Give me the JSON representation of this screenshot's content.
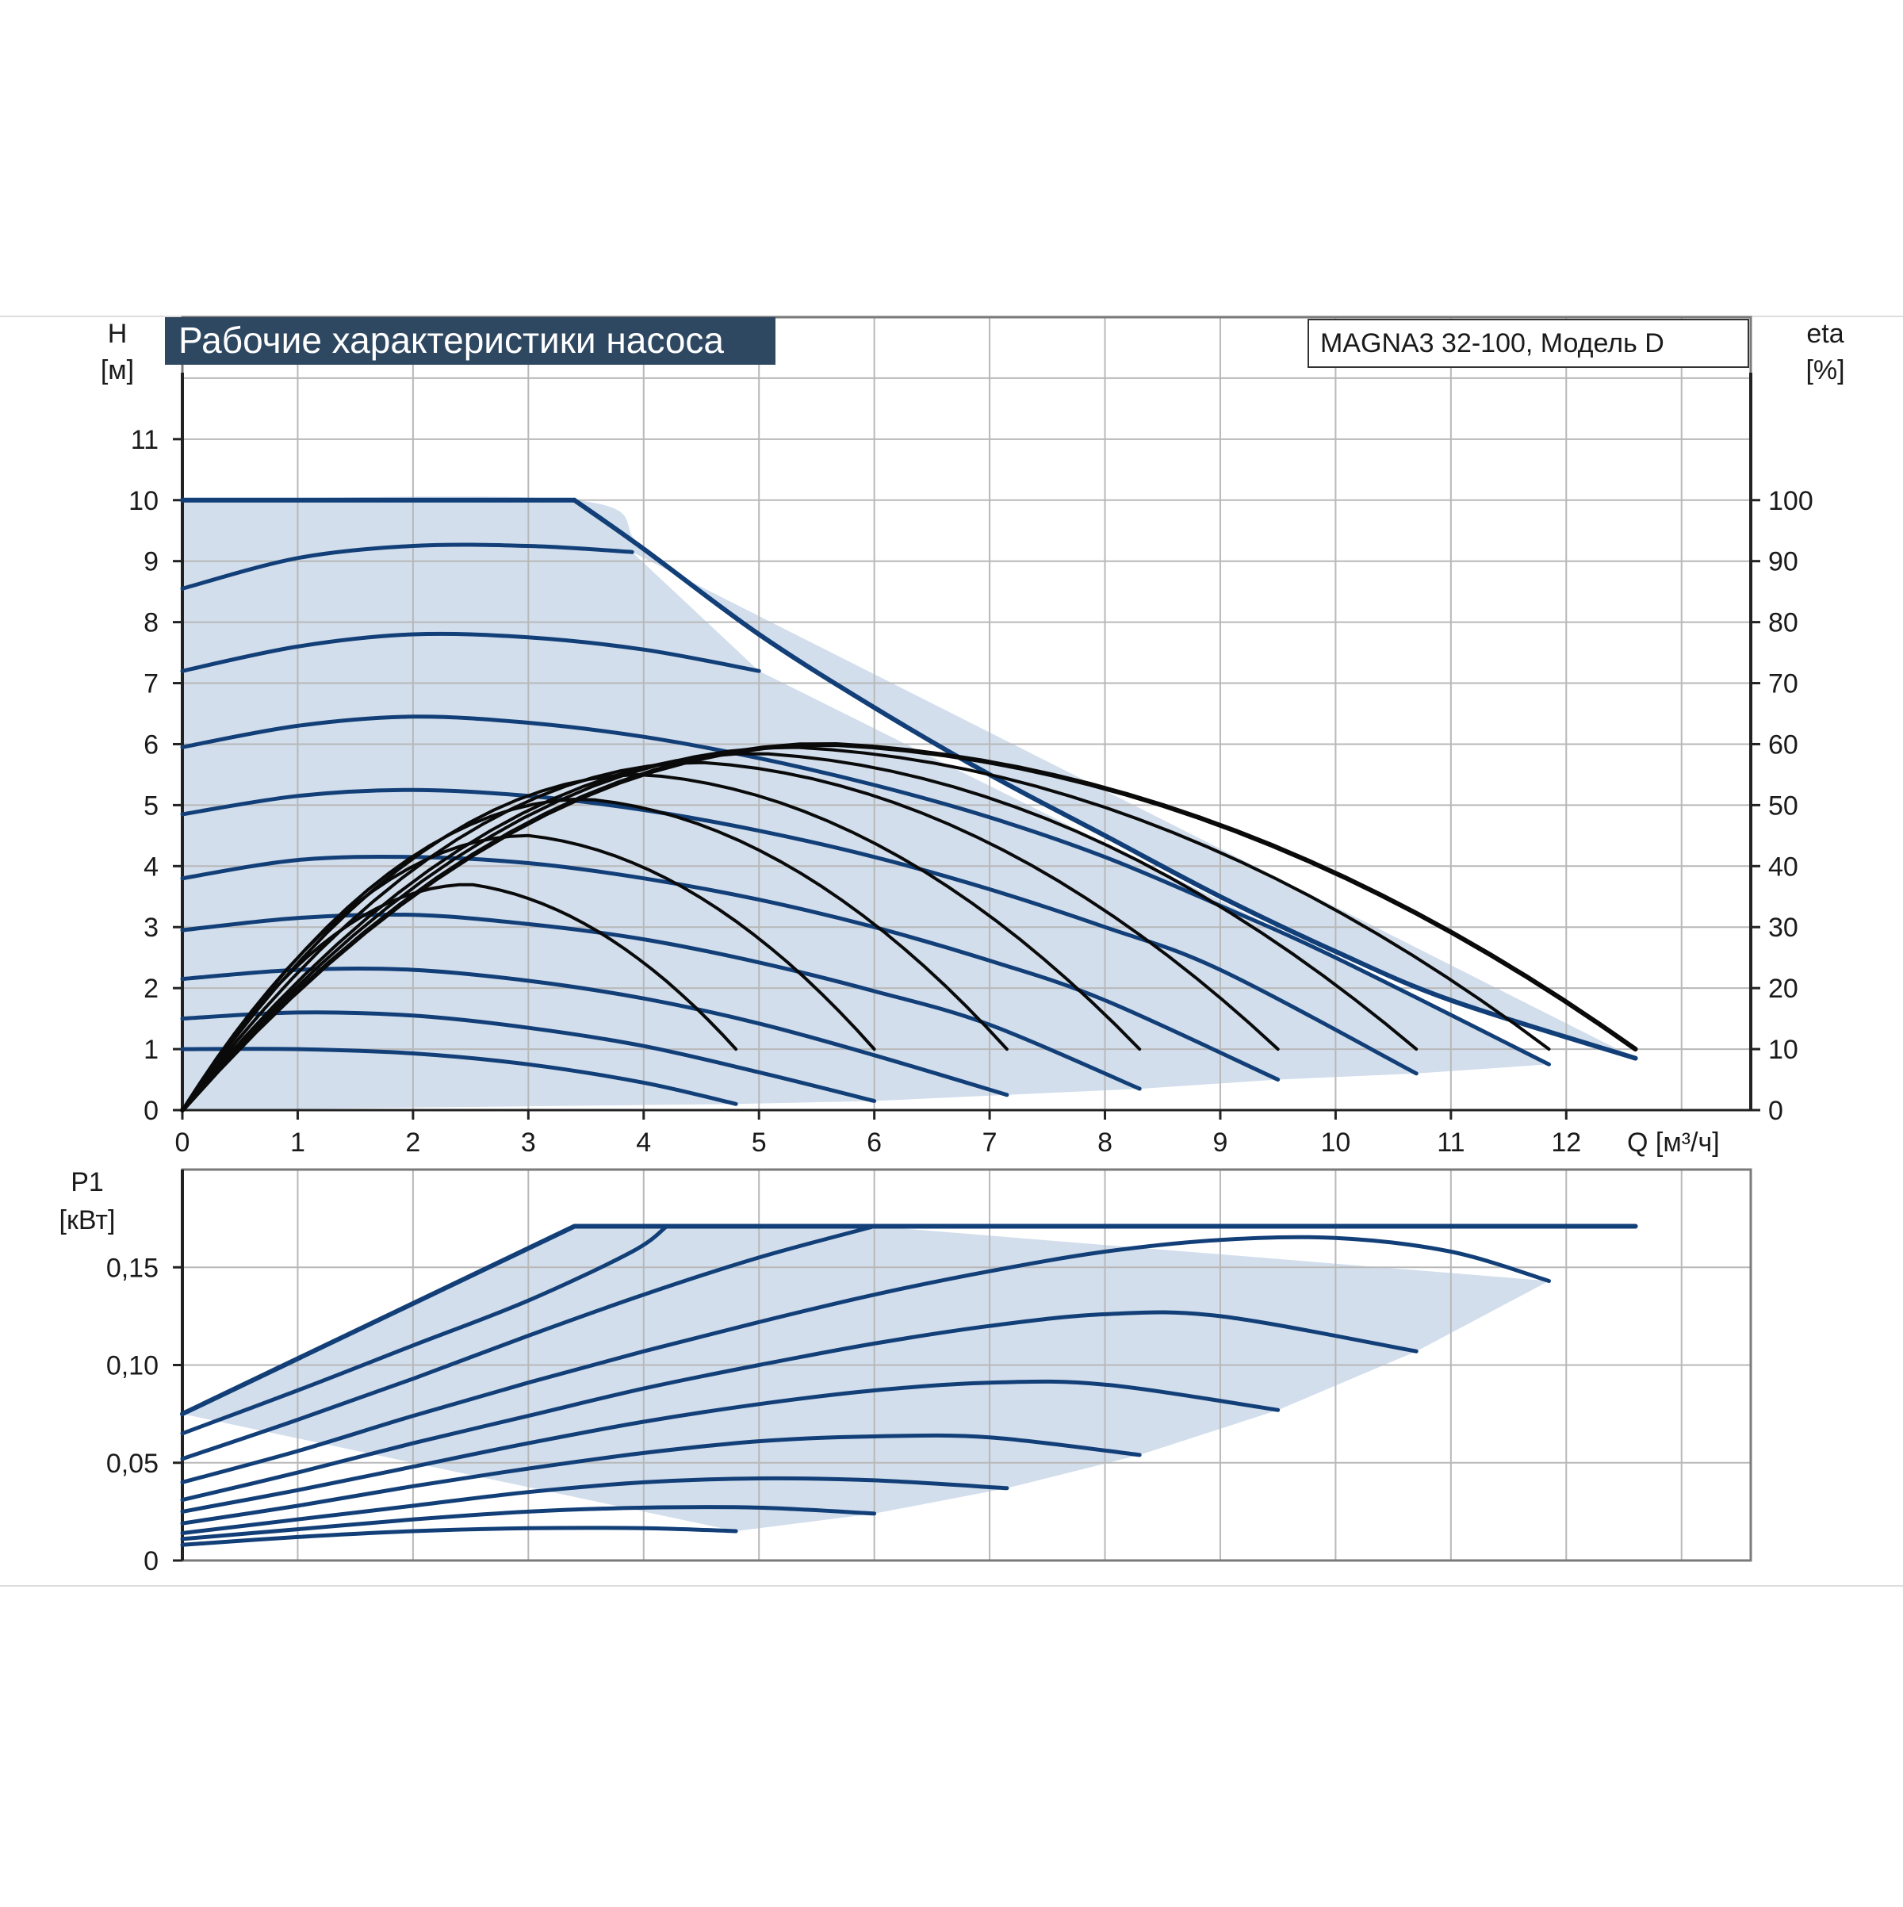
{
  "chart_data": [
    {
      "type": "line",
      "title": "Рабочие характеристики насоса",
      "model": "MAGNA3 32-100, Модель D",
      "xlabel": "Q [м³/ч]",
      "ylabel_symbol": "H",
      "ylabel_unit": "[м]",
      "y2label_symbol": "eta",
      "y2label_unit": "[%]",
      "xlim": [
        0,
        13.6
      ],
      "ylim": [
        0,
        13
      ],
      "y2lim": [
        0,
        130
      ],
      "xticks": [
        "0",
        "1",
        "2",
        "3",
        "4",
        "5",
        "6",
        "7",
        "8",
        "9",
        "10",
        "11",
        "12"
      ],
      "yticks": [
        "0",
        "1",
        "2",
        "3",
        "4",
        "5",
        "6",
        "7",
        "8",
        "9",
        "10",
        "11"
      ],
      "y2ticks": [
        "0",
        "10",
        "20",
        "30",
        "40",
        "50",
        "60",
        "70",
        "80",
        "90",
        "100"
      ],
      "grid": true,
      "shaded_region": "operating range",
      "max_curve_H": {
        "x": [
          0,
          3.4,
          4.0,
          5.0,
          6.0,
          7.0,
          8.0,
          9.0,
          10.0,
          11.0,
          12.6
        ],
        "y": [
          10,
          10,
          9.2,
          7.8,
          6.6,
          5.5,
          4.5,
          3.5,
          2.6,
          1.8,
          0.85
        ]
      },
      "series": [
        {
          "values": [
            [
              0,
              1.0
            ],
            [
              1,
              1.0
            ],
            [
              2,
              0.93
            ],
            [
              3,
              0.75
            ],
            [
              4,
              0.45
            ],
            [
              4.8,
              0.1
            ]
          ]
        },
        {
          "values": [
            [
              0,
              1.5
            ],
            [
              1,
              1.6
            ],
            [
              2,
              1.55
            ],
            [
              3,
              1.35
            ],
            [
              4,
              1.05
            ],
            [
              5,
              0.62
            ],
            [
              6,
              0.15
            ]
          ]
        },
        {
          "values": [
            [
              0,
              2.15
            ],
            [
              1,
              2.3
            ],
            [
              2,
              2.3
            ],
            [
              3,
              2.12
            ],
            [
              4,
              1.83
            ],
            [
              5,
              1.42
            ],
            [
              6,
              0.9
            ],
            [
              7.15,
              0.25
            ]
          ]
        },
        {
          "values": [
            [
              0,
              2.95
            ],
            [
              1,
              3.15
            ],
            [
              2,
              3.2
            ],
            [
              3,
              3.05
            ],
            [
              4,
              2.8
            ],
            [
              5,
              2.42
            ],
            [
              6,
              1.95
            ],
            [
              7,
              1.4
            ],
            [
              8.3,
              0.35
            ]
          ]
        },
        {
          "values": [
            [
              0,
              3.8
            ],
            [
              1,
              4.1
            ],
            [
              2,
              4.15
            ],
            [
              3,
              4.05
            ],
            [
              4,
              3.8
            ],
            [
              5,
              3.45
            ],
            [
              6,
              3.0
            ],
            [
              7,
              2.45
            ],
            [
              8,
              1.8
            ],
            [
              9.5,
              0.5
            ]
          ]
        },
        {
          "values": [
            [
              0,
              4.85
            ],
            [
              1,
              5.15
            ],
            [
              2,
              5.25
            ],
            [
              3,
              5.15
            ],
            [
              4,
              4.92
            ],
            [
              5,
              4.58
            ],
            [
              6,
              4.15
            ],
            [
              7,
              3.62
            ],
            [
              8,
              3.0
            ],
            [
              9,
              2.3
            ],
            [
              10.7,
              0.6
            ]
          ]
        },
        {
          "values": [
            [
              0,
              5.95
            ],
            [
              1,
              6.3
            ],
            [
              2,
              6.45
            ],
            [
              3,
              6.35
            ],
            [
              4,
              6.12
            ],
            [
              5,
              5.77
            ],
            [
              6,
              5.33
            ],
            [
              7,
              4.8
            ],
            [
              8,
              4.15
            ],
            [
              9,
              3.35
            ],
            [
              10,
              2.5
            ],
            [
              11.85,
              0.75
            ]
          ]
        },
        {
          "values": [
            [
              0,
              7.2
            ],
            [
              1,
              7.6
            ],
            [
              2,
              7.8
            ],
            [
              3,
              7.75
            ],
            [
              4,
              7.55
            ],
            [
              5,
              7.2
            ]
          ]
        },
        {
          "values": [
            [
              0,
              8.55
            ],
            [
              1,
              9.05
            ],
            [
              2,
              9.25
            ],
            [
              3,
              9.25
            ],
            [
              3.9,
              9.15
            ]
          ]
        }
      ],
      "efficiency_series": [
        {
          "x_end": 4.8,
          "peak_x": 2.5,
          "peak_eta": 37
        },
        {
          "x_end": 6.0,
          "peak_x": 3.0,
          "peak_eta": 45
        },
        {
          "x_end": 7.15,
          "peak_x": 3.5,
          "peak_eta": 51
        },
        {
          "x_end": 8.3,
          "peak_x": 4.0,
          "peak_eta": 55
        },
        {
          "x_end": 9.5,
          "peak_x": 4.5,
          "peak_eta": 57
        },
        {
          "x_end": 10.7,
          "peak_x": 5.0,
          "peak_eta": 58.5
        },
        {
          "x_end": 11.85,
          "peak_x": 5.3,
          "peak_eta": 59.5
        },
        {
          "x_end": 12.6,
          "peak_x": 5.6,
          "peak_eta": 60
        }
      ]
    },
    {
      "type": "line",
      "ylabel_symbol": "P1",
      "ylabel_unit": "[кВт]",
      "xlim": [
        0,
        13.6
      ],
      "ylim": [
        0,
        0.2
      ],
      "yticks": [
        "0",
        "0,05",
        "0,10",
        "0,15"
      ],
      "ytick_values": [
        0,
        0.05,
        0.1,
        0.15
      ],
      "grid": true,
      "max_power_kw": 0.171,
      "series": [
        {
          "values": [
            [
              0,
              0.008
            ],
            [
              1,
              0.012
            ],
            [
              2,
              0.015
            ],
            [
              3,
              0.0165
            ],
            [
              4,
              0.0165
            ],
            [
              4.8,
              0.015
            ]
          ]
        },
        {
          "values": [
            [
              0,
              0.011
            ],
            [
              1,
              0.016
            ],
            [
              2,
              0.021
            ],
            [
              3,
              0.025
            ],
            [
              4,
              0.027
            ],
            [
              5,
              0.027
            ],
            [
              6,
              0.024
            ]
          ]
        },
        {
          "values": [
            [
              0,
              0.014
            ],
            [
              1,
              0.021
            ],
            [
              2,
              0.028
            ],
            [
              3,
              0.035
            ],
            [
              4,
              0.04
            ],
            [
              5,
              0.042
            ],
            [
              6,
              0.041
            ],
            [
              7.15,
              0.037
            ]
          ]
        },
        {
          "values": [
            [
              0,
              0.019
            ],
            [
              1,
              0.028
            ],
            [
              2,
              0.038
            ],
            [
              3,
              0.047
            ],
            [
              4,
              0.055
            ],
            [
              5,
              0.061
            ],
            [
              6,
              0.0635
            ],
            [
              7,
              0.063
            ],
            [
              8.3,
              0.054
            ]
          ]
        },
        {
          "values": [
            [
              0,
              0.025
            ],
            [
              1,
              0.036
            ],
            [
              2,
              0.048
            ],
            [
              3,
              0.06
            ],
            [
              4,
              0.071
            ],
            [
              5,
              0.08
            ],
            [
              6,
              0.087
            ],
            [
              7,
              0.091
            ],
            [
              8,
              0.09
            ],
            [
              9.5,
              0.077
            ]
          ]
        },
        {
          "values": [
            [
              0,
              0.031
            ],
            [
              1,
              0.045
            ],
            [
              2,
              0.06
            ],
            [
              3,
              0.074
            ],
            [
              4,
              0.088
            ],
            [
              5,
              0.1
            ],
            [
              6,
              0.111
            ],
            [
              7,
              0.12
            ],
            [
              8,
              0.126
            ],
            [
              9,
              0.125
            ],
            [
              10.7,
              0.107
            ]
          ]
        },
        {
          "values": [
            [
              0,
              0.04
            ],
            [
              1,
              0.056
            ],
            [
              2,
              0.074
            ],
            [
              3,
              0.091
            ],
            [
              4,
              0.107
            ],
            [
              5,
              0.122
            ],
            [
              6,
              0.136
            ],
            [
              7,
              0.148
            ],
            [
              8,
              0.158
            ],
            [
              9,
              0.164
            ],
            [
              10,
              0.165
            ],
            [
              11,
              0.158
            ],
            [
              11.85,
              0.143
            ]
          ]
        },
        {
          "values": [
            [
              0,
              0.052
            ],
            [
              1,
              0.072
            ],
            [
              2,
              0.093
            ],
            [
              3,
              0.115
            ],
            [
              4,
              0.136
            ],
            [
              5,
              0.155
            ],
            [
              6,
              0.171
            ]
          ]
        },
        {
          "values": [
            [
              0,
              0.065
            ],
            [
              1,
              0.087
            ],
            [
              2,
              0.11
            ],
            [
              3,
              0.133
            ],
            [
              3.9,
              0.158
            ],
            [
              4.2,
              0.171
            ]
          ]
        }
      ],
      "max_curve_P1": {
        "x": [
          0,
          3.4,
          12.6
        ],
        "y": [
          0.075,
          0.171,
          0.171
        ]
      }
    }
  ]
}
